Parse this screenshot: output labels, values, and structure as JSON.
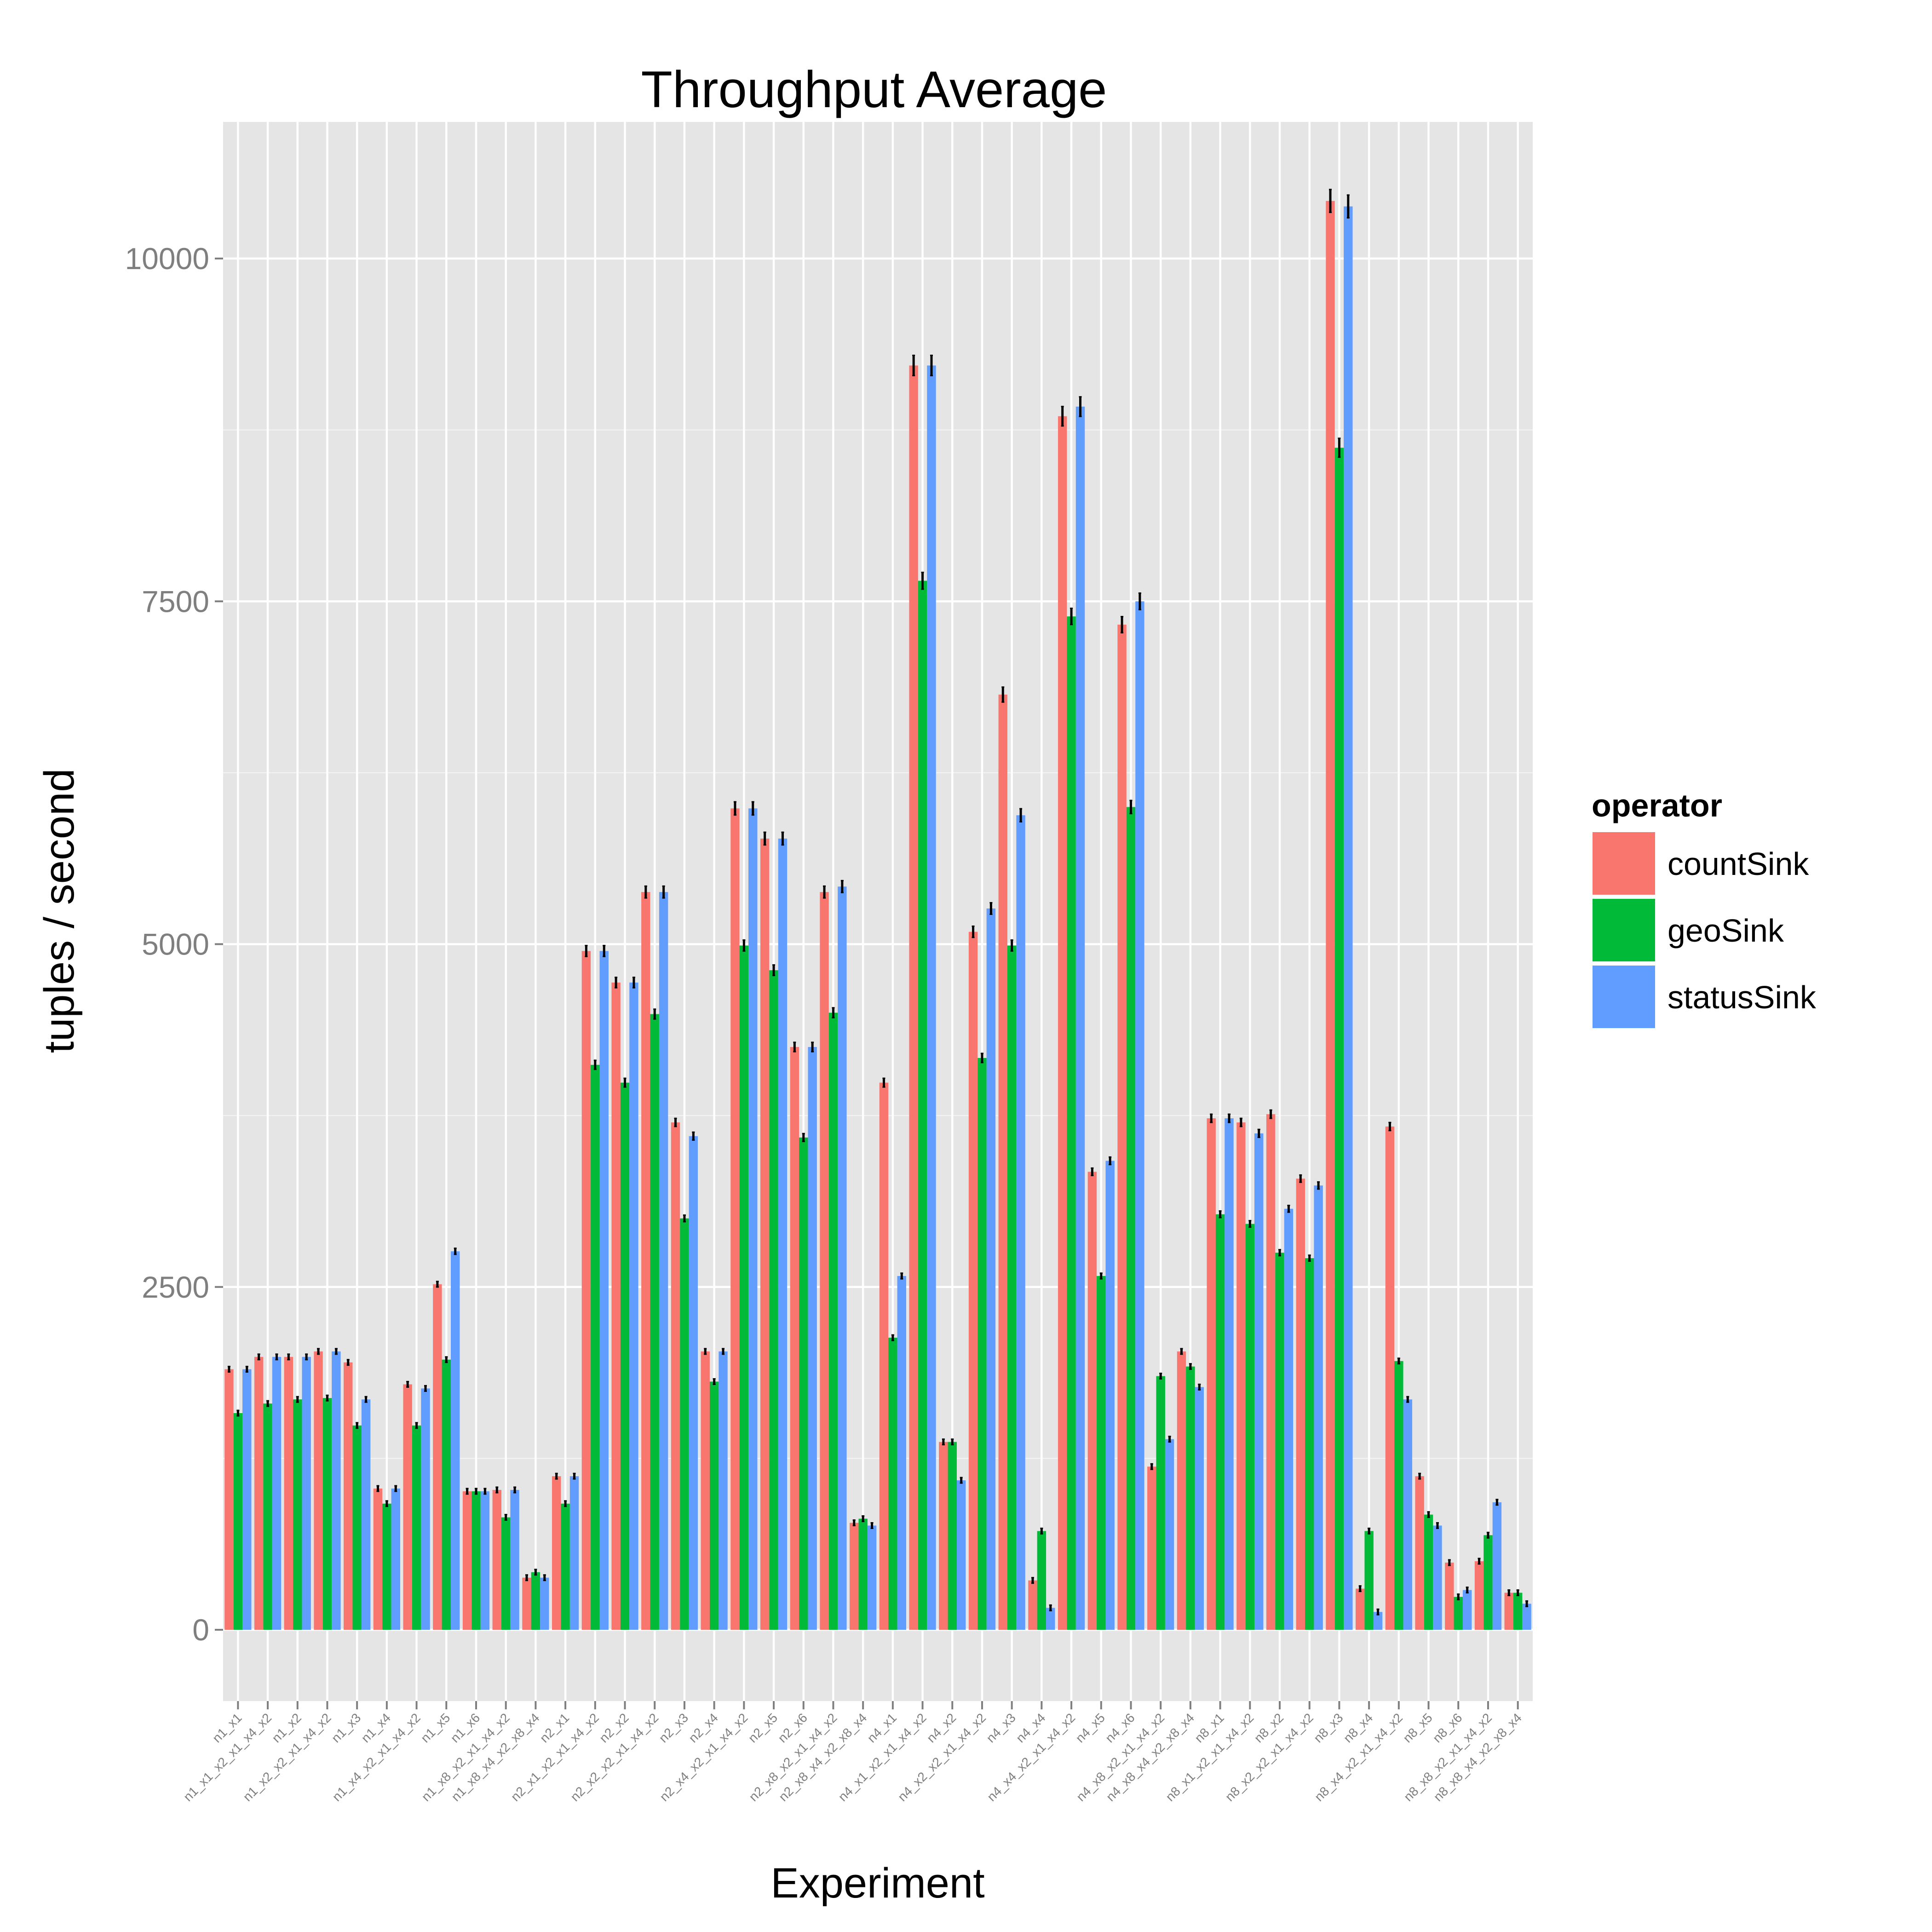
{
  "chart_data": {
    "type": "bar",
    "title": "Throughput Average",
    "xlabel": "Experiment",
    "ylabel": "tuples / second",
    "ylim": [
      -500,
      10300
    ],
    "yticks": [
      0,
      2500,
      5000,
      7500,
      10000
    ],
    "ytick_labels": [
      "0",
      "2500",
      "5000",
      "7500",
      "10000"
    ],
    "grid": true,
    "legend": {
      "title": "operator",
      "position": "right"
    },
    "colors": {
      "countSink": "#f8766d",
      "geoSink": "#00ba38",
      "statusSink": "#619cff",
      "panel": "#e5e5e5",
      "grid": "#ffffff",
      "error_bar": "#000000"
    },
    "categories": [
      "n1_x1",
      "n1_x1_x2_x1_x4_x2",
      "n1_x2",
      "n1_x2_x2_x1_x4_x2",
      "n1_x3",
      "n1_x4",
      "n1_x4_x2_x1_x4_x2",
      "n1_x5",
      "n1_x6",
      "n1_x8_x2_x1_x4_x2",
      "n1_x8_x4_x2_x8_x4",
      "n2_x1",
      "n2_x1_x2_x1_x4_x2",
      "n2_x2",
      "n2_x2_x2_x1_x4_x2",
      "n2_x3",
      "n2_x4",
      "n2_x4_x2_x1_x4_x2",
      "n2_x5",
      "n2_x6",
      "n2_x8_x2_x1_x4_x2",
      "n2_x8_x4_x2_x8_x4",
      "n4_x1",
      "n4_x1_x2_x1_x4_x2",
      "n4_x2",
      "n4_x2_x2_x1_x4_x2",
      "n4_x3",
      "n4_x4",
      "n4_x4_x2_x1_x4_x2",
      "n4_x5",
      "n4_x6",
      "n4_x8_x2_x1_x4_x2",
      "n4_x8_x4_x2_x8_x4",
      "n8_x1",
      "n8_x1_x2_x1_x4_x2",
      "n8_x2",
      "n8_x2_x2_x1_x4_x2",
      "n8_x3",
      "n8_x4",
      "n8_x4_x2_x1_x4_x2",
      "n8_x5",
      "n8_x6",
      "n8_x8_x2_x1_x4_x2",
      "n8_x8_x4_x2_x8_x4"
    ],
    "series": [
      {
        "name": "countSink",
        "values": [
          1900,
          1990,
          1990,
          2030,
          1950,
          1030,
          1790,
          2520,
          1010,
          1020,
          380,
          1120,
          4950,
          4720,
          5380,
          3700,
          2030,
          5990,
          5770,
          4250,
          5380,
          780,
          3990,
          9220,
          1370,
          5090,
          6820,
          360,
          8850,
          3340,
          7330,
          1190,
          2030,
          3730,
          3700,
          3760,
          3290,
          10420,
          300,
          3670,
          1120,
          490,
          500,
          270
        ]
      },
      {
        "name": "geoSink",
        "values": [
          1580,
          1650,
          1680,
          1690,
          1490,
          920,
          1490,
          1970,
          1010,
          820,
          420,
          920,
          4120,
          3990,
          4490,
          3000,
          1810,
          4990,
          4810,
          3590,
          4500,
          810,
          2130,
          7650,
          1370,
          4170,
          4990,
          720,
          7390,
          2580,
          6000,
          1850,
          1920,
          3030,
          2960,
          2750,
          2710,
          8620,
          720,
          1960,
          840,
          240,
          690,
          270
        ]
      },
      {
        "name": "statusSink",
        "values": [
          1900,
          1990,
          1990,
          2030,
          1680,
          1030,
          1760,
          2760,
          1010,
          1020,
          380,
          1120,
          4950,
          4720,
          5380,
          3600,
          2030,
          5990,
          5770,
          4250,
          5420,
          760,
          2580,
          9220,
          1090,
          5260,
          5940,
          160,
          8920,
          3420,
          7500,
          1390,
          1770,
          3730,
          3620,
          3070,
          3240,
          10380,
          130,
          1680,
          760,
          290,
          930,
          190
        ]
      }
    ]
  }
}
